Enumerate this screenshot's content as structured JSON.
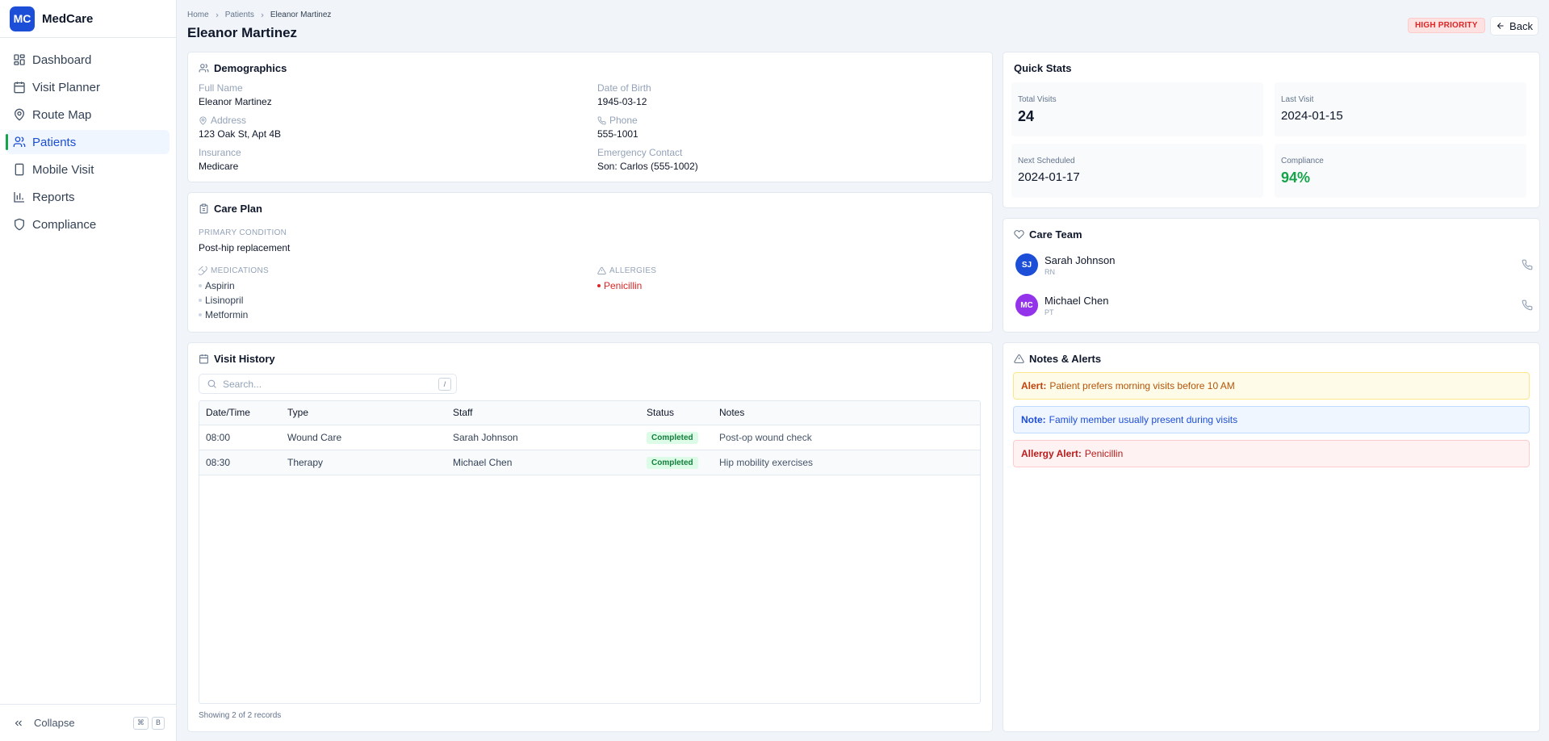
{
  "app": {
    "logo": "MC",
    "name": "MedCare"
  },
  "sidebar": {
    "items": [
      {
        "label": "Dashboard",
        "icon": "layout-grid-icon"
      },
      {
        "label": "Visit Planner",
        "icon": "calendar-icon"
      },
      {
        "label": "Route Map",
        "icon": "map-pin-icon"
      },
      {
        "label": "Patients",
        "icon": "users-icon",
        "active": true
      },
      {
        "label": "Mobile Visit",
        "icon": "smartphone-icon"
      },
      {
        "label": "Reports",
        "icon": "bar-chart-icon"
      },
      {
        "label": "Compliance",
        "icon": "shield-icon"
      }
    ],
    "collapse_label": "Collapse",
    "shortcut": [
      "⌘",
      "B"
    ]
  },
  "header": {
    "breadcrumb": [
      "Home",
      "Patients",
      "Eleanor Martinez"
    ],
    "title": "Eleanor Martinez",
    "priority_badge": "HIGH PRIORITY",
    "back_label": "Back"
  },
  "demographics": {
    "title": "Demographics",
    "full_name_label": "Full Name",
    "full_name": "Eleanor Martinez",
    "dob_label": "Date of Birth",
    "dob": "1945-03-12",
    "address_label": "Address",
    "address": "123 Oak St, Apt 4B",
    "phone_label": "Phone",
    "phone": "555-1001",
    "insurance_label": "Insurance",
    "insurance": "Medicare",
    "emergency_label": "Emergency Contact",
    "emergency": "Son: Carlos (555-1002)"
  },
  "care_plan": {
    "title": "Care Plan",
    "primary_label": "PRIMARY CONDITION",
    "primary": "Post-hip replacement",
    "medications_label": "MEDICATIONS",
    "medications": [
      "Aspirin",
      "Lisinopril",
      "Metformin"
    ],
    "allergies_label": "ALLERGIES",
    "allergies": [
      "Penicillin"
    ]
  },
  "visit_history": {
    "title": "Visit History",
    "search_placeholder": "Search...",
    "search_shortcut": "/",
    "columns": [
      "Date/Time",
      "Type",
      "Staff",
      "Status",
      "Notes"
    ],
    "rows": [
      {
        "time": "08:00",
        "type": "Wound Care",
        "staff": "Sarah Johnson",
        "status": "Completed",
        "notes": "Post-op wound check"
      },
      {
        "time": "08:30",
        "type": "Therapy",
        "staff": "Michael Chen",
        "status": "Completed",
        "notes": "Hip mobility exercises"
      }
    ],
    "records_text": "Showing 2 of 2 records"
  },
  "quick_stats": {
    "title": "Quick Stats",
    "total_visits_label": "Total Visits",
    "total_visits": "24",
    "last_visit_label": "Last Visit",
    "last_visit": "2024-01-15",
    "next_scheduled_label": "Next Scheduled",
    "next_scheduled": "2024-01-17",
    "compliance_label": "Compliance",
    "compliance": "94%"
  },
  "care_team": {
    "title": "Care Team",
    "members": [
      {
        "initials": "SJ",
        "name": "Sarah Johnson",
        "role": "RN",
        "color": "#1d4ed8"
      },
      {
        "initials": "MC",
        "name": "Michael Chen",
        "role": "PT",
        "color": "#9333ea"
      }
    ]
  },
  "notes_alerts": {
    "title": "Notes & Alerts",
    "items": [
      {
        "label": "Alert:",
        "text": "Patient prefers morning visits before 10 AM",
        "kind": "warn"
      },
      {
        "label": "Note:",
        "text": "Family member usually present during visits",
        "kind": "info"
      },
      {
        "label": "Allergy Alert:",
        "text": "Penicillin",
        "kind": "danger"
      }
    ]
  }
}
